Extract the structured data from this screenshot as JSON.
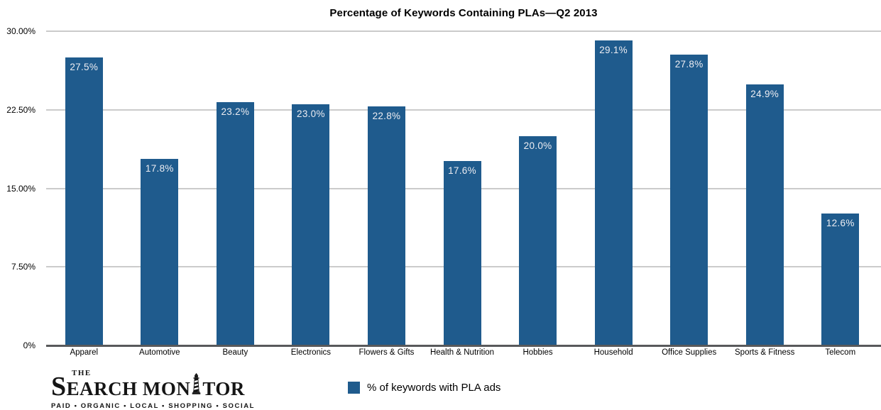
{
  "title": "Percentage of Keywords Containing PLAs—Q2 2013",
  "chart_data": {
    "type": "bar",
    "title": "Percentage of Keywords Containing PLAs—Q2 2013",
    "categories": [
      "Apparel",
      "Automotive",
      "Beauty",
      "Electronics",
      "Flowers & Gifts",
      "Health & Nutrition",
      "Hobbies",
      "Household",
      "Office Supplies",
      "Sports & Fitness",
      "Telecom"
    ],
    "values": [
      27.5,
      17.8,
      23.2,
      23.0,
      22.8,
      17.6,
      20.0,
      29.1,
      27.8,
      24.9,
      12.6
    ],
    "value_labels": [
      "27.5%",
      "17.8%",
      "23.2%",
      "23.0%",
      "22.8%",
      "17.6%",
      "20.0%",
      "29.1%",
      "27.8%",
      "24.9%",
      "12.6%"
    ],
    "series_name": "% of keywords with PLA ads",
    "xlabel": "",
    "ylabel": "",
    "ylim": [
      0,
      30
    ],
    "y_ticks": [
      {
        "value": 0,
        "label": "0%"
      },
      {
        "value": 7.5,
        "label": "7.50%"
      },
      {
        "value": 15,
        "label": "15.00%"
      },
      {
        "value": 22.5,
        "label": "22.50%"
      },
      {
        "value": 30,
        "label": "30.00%"
      }
    ],
    "grid": true,
    "legend_position": "bottom"
  },
  "legend": {
    "label": "% of keywords with PLA ads",
    "swatch_color": "#1f5b8d"
  },
  "logo": {
    "the": "THE",
    "part1": "S",
    "part2": "EARCH MON",
    "part3": "TOR",
    "lighthouse_icon": "lighthouse-icon",
    "tagline": "PAID • ORGANIC • LOCAL • SHOPPING • SOCIAL"
  },
  "colors": {
    "bar": "#1f5b8d",
    "grid": "#cbcbcb",
    "axis": "#58595b",
    "bar_label": "#ededf2"
  }
}
